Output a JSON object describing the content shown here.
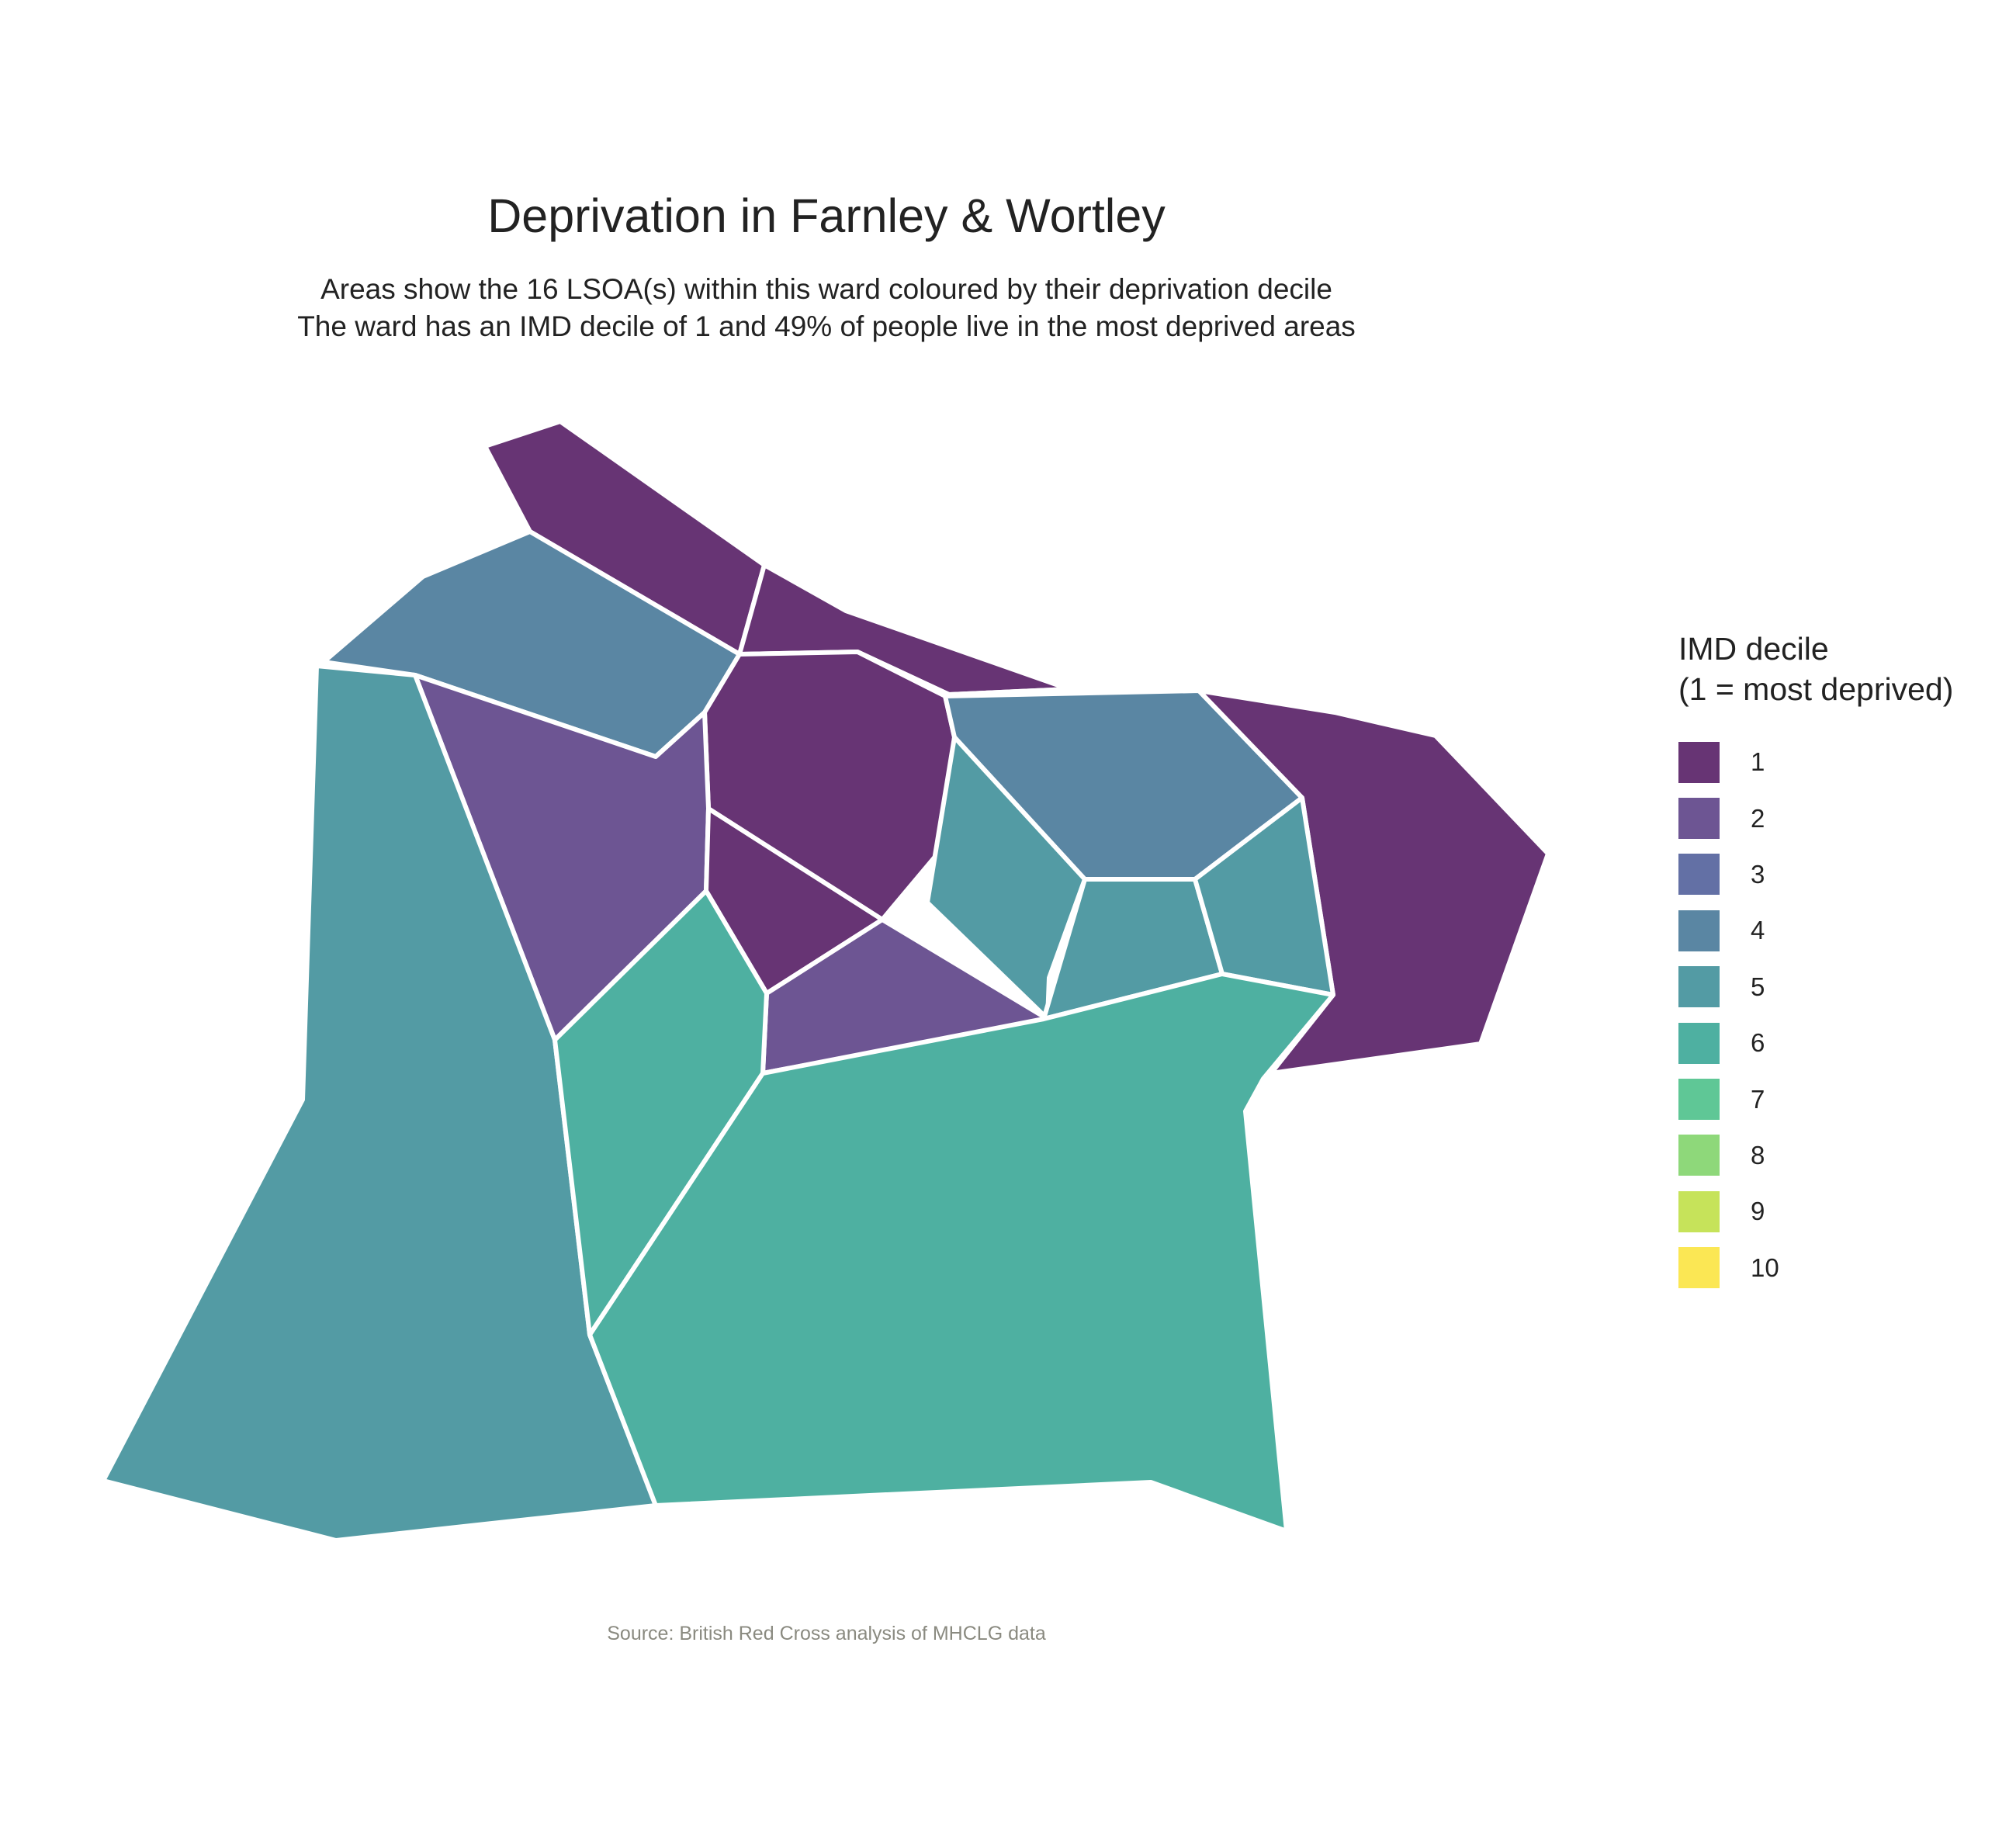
{
  "title": "Deprivation in Farnley & Wortley",
  "subtitle_line1": "Areas show the 16 LSOA(s) within this ward coloured by their deprivation decile",
  "subtitle_line2": "The ward has an IMD decile of 1 and 49% of people live in the most deprived areas",
  "caption": "Source: British Red Cross analysis of MHCLG data",
  "legend": {
    "title_line1": "IMD decile",
    "title_line2": "(1 = most deprived)",
    "items": [
      {
        "label": "1",
        "color": "#673474"
      },
      {
        "label": "2",
        "color": "#6d5593"
      },
      {
        "label": "3",
        "color": "#6370a5"
      },
      {
        "label": "4",
        "color": "#5a86a3"
      },
      {
        "label": "5",
        "color": "#539ba4"
      },
      {
        "label": "6",
        "color": "#4eb0a1"
      },
      {
        "label": "7",
        "color": "#5fc796"
      },
      {
        "label": "8",
        "color": "#8ed87a"
      },
      {
        "label": "9",
        "color": "#c6e35a"
      },
      {
        "label": "10",
        "color": "#fbe754"
      }
    ]
  },
  "chart_data": {
    "type": "choropleth",
    "legend_position": "right",
    "areas": [
      {
        "decile": 1
      },
      {
        "decile": 4
      },
      {
        "decile": 1
      },
      {
        "decile": 1
      },
      {
        "decile": 1
      },
      {
        "decile": 2
      },
      {
        "decile": 1
      },
      {
        "decile": 4
      },
      {
        "decile": 1
      },
      {
        "decile": 5
      },
      {
        "decile": 2
      },
      {
        "decile": 5
      },
      {
        "decile": 5
      },
      {
        "decile": 5
      },
      {
        "decile": 6
      },
      {
        "decile": 6
      }
    ]
  }
}
